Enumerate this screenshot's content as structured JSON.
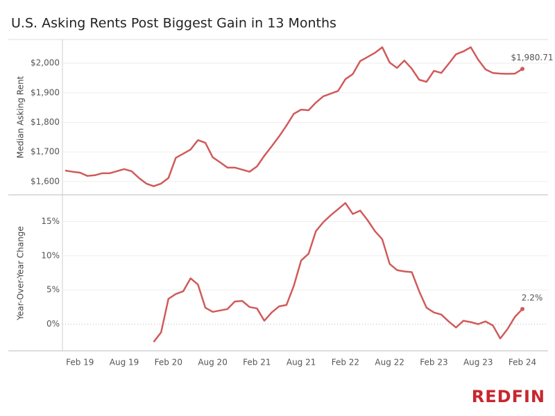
{
  "chart_data": {
    "type": "line",
    "title": "U.S. Asking Rents Post Biggest Gain in 13 Months",
    "categories": [
      null,
      null,
      "Feb 19",
      null,
      null,
      null,
      null,
      null,
      "Aug 19",
      null,
      null,
      null,
      null,
      null,
      "Feb 20",
      null,
      null,
      null,
      null,
      null,
      "Aug 20",
      null,
      null,
      null,
      null,
      null,
      "Feb 21",
      null,
      null,
      null,
      null,
      null,
      "Aug 21",
      null,
      null,
      null,
      null,
      null,
      "Feb 22",
      null,
      null,
      null,
      null,
      null,
      "Aug 22",
      null,
      null,
      null,
      null,
      null,
      "Feb 23",
      null,
      null,
      null,
      null,
      null,
      "Aug 23",
      null,
      null,
      null,
      null,
      null,
      "Feb 24"
    ],
    "ylabel": "Median Asking Rent",
    "ylim": [
      1555,
      2080
    ],
    "yticks": [
      {
        "value": 1600,
        "label": "$1,600"
      },
      {
        "value": 1700,
        "label": "$1,700"
      },
      {
        "value": 1800,
        "label": "$1,800"
      },
      {
        "value": 1900,
        "label": "$1,900"
      },
      {
        "value": 2000,
        "label": "$2,000"
      }
    ],
    "y2label": "Year-Over-Year Change",
    "y2lim": [
      -3.9,
      18.9
    ],
    "y2ticks": [
      {
        "value": 0,
        "label": "0%"
      },
      {
        "value": 5,
        "label": "5%"
      },
      {
        "value": 10,
        "label": "10%"
      },
      {
        "value": 15,
        "label": "15%"
      }
    ],
    "grid": true,
    "series": [
      {
        "color": "#d05a5a",
        "values": [
          1637,
          1633,
          1630,
          1619,
          1621,
          1628,
          1628,
          1635,
          1642,
          1635,
          1612,
          1593,
          1584,
          1593,
          1612,
          1680,
          1694,
          1708,
          1740,
          1731,
          1682,
          1665,
          1647,
          1647,
          1640,
          1633,
          1651,
          1687,
          1719,
          1752,
          1789,
          1829,
          1843,
          1841,
          1867,
          1888,
          1897,
          1906,
          1946,
          1963,
          2007,
          2021,
          2035,
          2054,
          2002,
          1984,
          2009,
          1981,
          1944,
          1937,
          1974,
          1967,
          1998,
          2030,
          2040,
          2054,
          2012,
          1979,
          1967,
          1965,
          1964,
          1965,
          1980.71
        ],
        "value_labels": [
          null,
          null,
          null,
          null,
          null,
          null,
          null,
          null,
          null,
          null,
          null,
          null,
          null,
          null,
          null,
          null,
          null,
          null,
          null,
          null,
          null,
          null,
          null,
          null,
          null,
          null,
          null,
          null,
          null,
          null,
          null,
          null,
          null,
          null,
          null,
          null,
          null,
          null,
          null,
          null,
          null,
          null,
          null,
          null,
          null,
          null,
          null,
          null,
          null,
          null,
          null,
          null,
          null,
          null,
          null,
          null,
          null,
          null,
          null,
          null,
          null,
          null,
          "$1,980.71"
        ]
      },
      {
        "color": "#d05a5a",
        "axis": "y2",
        "values": [
          null,
          null,
          null,
          null,
          null,
          null,
          null,
          null,
          null,
          null,
          null,
          null,
          -2.6,
          -1.2,
          3.7,
          4.4,
          4.8,
          6.7,
          5.8,
          2.4,
          1.8,
          2.0,
          2.2,
          3.3,
          3.4,
          2.5,
          2.3,
          0.5,
          1.7,
          2.6,
          2.8,
          5.6,
          9.3,
          10.3,
          13.6,
          14.9,
          15.9,
          16.8,
          17.7,
          16.1,
          16.6,
          15.2,
          13.6,
          12.4,
          8.8,
          7.9,
          7.7,
          7.6,
          4.8,
          2.4,
          1.7,
          1.4,
          0.4,
          -0.5,
          0.5,
          0.3,
          0.0,
          0.4,
          -0.2,
          -2.1,
          -0.7,
          1.1,
          2.2
        ],
        "value_labels": [
          null,
          null,
          null,
          null,
          null,
          null,
          null,
          null,
          null,
          null,
          null,
          null,
          null,
          null,
          null,
          null,
          null,
          null,
          null,
          null,
          null,
          null,
          null,
          null,
          null,
          null,
          null,
          null,
          null,
          null,
          null,
          null,
          null,
          null,
          null,
          null,
          null,
          null,
          null,
          null,
          null,
          null,
          null,
          null,
          null,
          null,
          null,
          null,
          null,
          null,
          null,
          null,
          null,
          null,
          null,
          null,
          null,
          null,
          null,
          null,
          null,
          null,
          "2.2%"
        ]
      }
    ]
  },
  "logo": "REDFIN"
}
